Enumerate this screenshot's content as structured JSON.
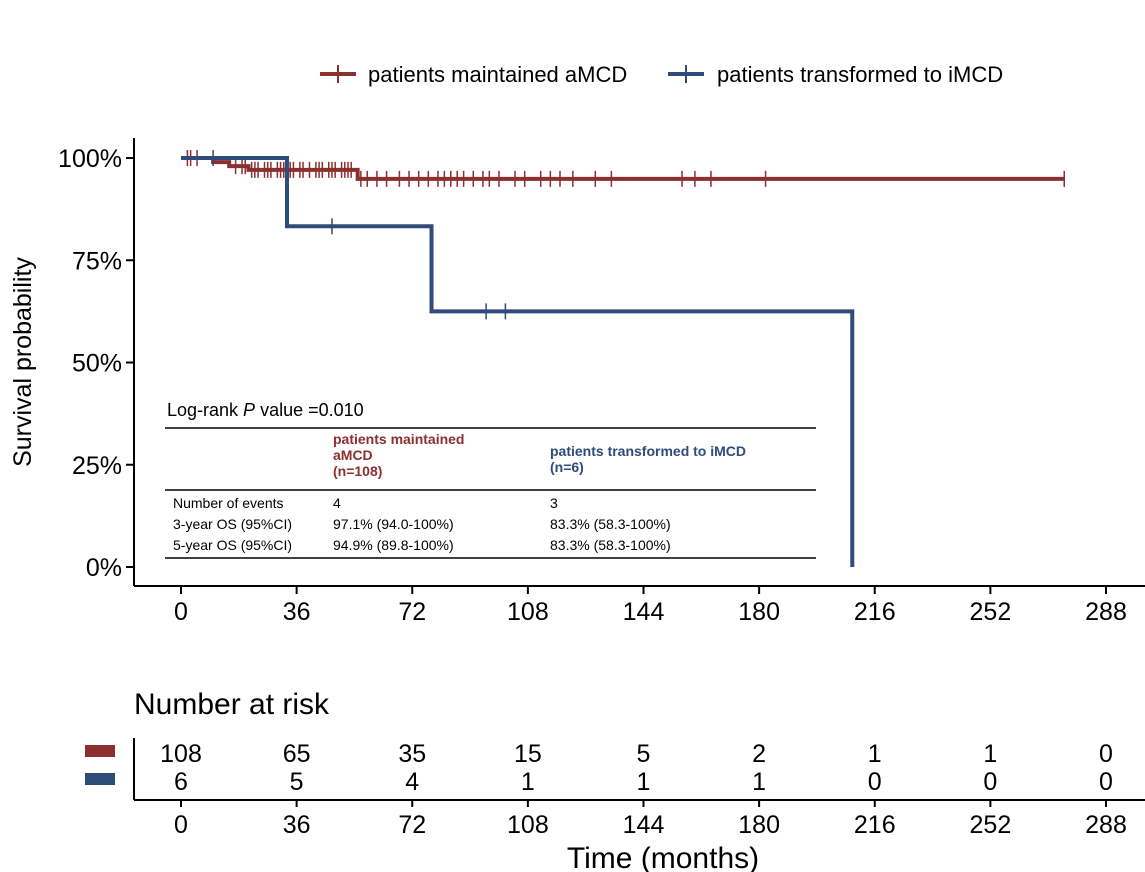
{
  "chart_data": {
    "type": "line",
    "subtype": "kaplan-meier",
    "xlabel": "Time (months)",
    "ylabel": "Survival probability",
    "xlim": [
      0,
      288
    ],
    "ylim": [
      0,
      1
    ],
    "x_ticks": [
      "0",
      "36",
      "72",
      "108",
      "144",
      "180",
      "216",
      "252",
      "288"
    ],
    "y_ticks": [
      "0%",
      "25%",
      "50%",
      "75%",
      "100%"
    ],
    "legend_position": "top",
    "series": [
      {
        "name": "patients maintained aMCD",
        "color": "#8B2F2F",
        "steps": [
          [
            0,
            1.0
          ],
          [
            10,
            0.99
          ],
          [
            15,
            0.98
          ],
          [
            21,
            0.971
          ],
          [
            55,
            0.949
          ],
          [
            275,
            0.949
          ]
        ],
        "censor_times": [
          2,
          3,
          5,
          17,
          19,
          20,
          22,
          23,
          24,
          26,
          27,
          28,
          30,
          31,
          32,
          34,
          35,
          37,
          38,
          40,
          42,
          43,
          44,
          46,
          47,
          48,
          50,
          51,
          52,
          53,
          56,
          58,
          61,
          64,
          68,
          71,
          74,
          77,
          80,
          82,
          84,
          86,
          88,
          91,
          94,
          96,
          99,
          104,
          107,
          112,
          115,
          118,
          122,
          129,
          134,
          156,
          160,
          165,
          182,
          275
        ]
      },
      {
        "name": "patients transformed to iMCD",
        "color": "#2E4B7A",
        "steps": [
          [
            0,
            1.0
          ],
          [
            33,
            0.833
          ],
          [
            78,
            0.625
          ],
          [
            209,
            0.0
          ]
        ],
        "censor_times": [
          10,
          47,
          95,
          101
        ]
      }
    ],
    "risk_table": {
      "title": "Number at risk",
      "times": [
        "0",
        "36",
        "72",
        "108",
        "144",
        "180",
        "216",
        "252",
        "288"
      ],
      "rows": [
        {
          "color": "#8B2F2F",
          "values": [
            "108",
            "65",
            "35",
            "15",
            "5",
            "2",
            "1",
            "1",
            "0"
          ]
        },
        {
          "color": "#2E4B7A",
          "values": [
            "6",
            "5",
            "4",
            "1",
            "1",
            "1",
            "0",
            "0",
            "0"
          ]
        }
      ]
    },
    "stats_table": {
      "title_prefix": "Log-rank ",
      "title_italic": "P",
      "title_suffix": " value =0.010",
      "col1_header": [
        "patients maintained",
        "aMCD",
        "(n=108)"
      ],
      "col2_header": [
        "patients transformed to iMCD",
        "(n=6)"
      ],
      "rows": [
        {
          "label": "Number of events",
          "c1": "4",
          "c2": "3"
        },
        {
          "label": "3-year OS (95%CI)",
          "c1": "97.1% (94.0-100%)",
          "c2": "83.3% (58.3-100%)"
        },
        {
          "label": "5-year OS (95%CI)",
          "c1": "94.9% (89.8-100%)",
          "c2": "83.3% (58.3-100%)"
        }
      ]
    }
  }
}
